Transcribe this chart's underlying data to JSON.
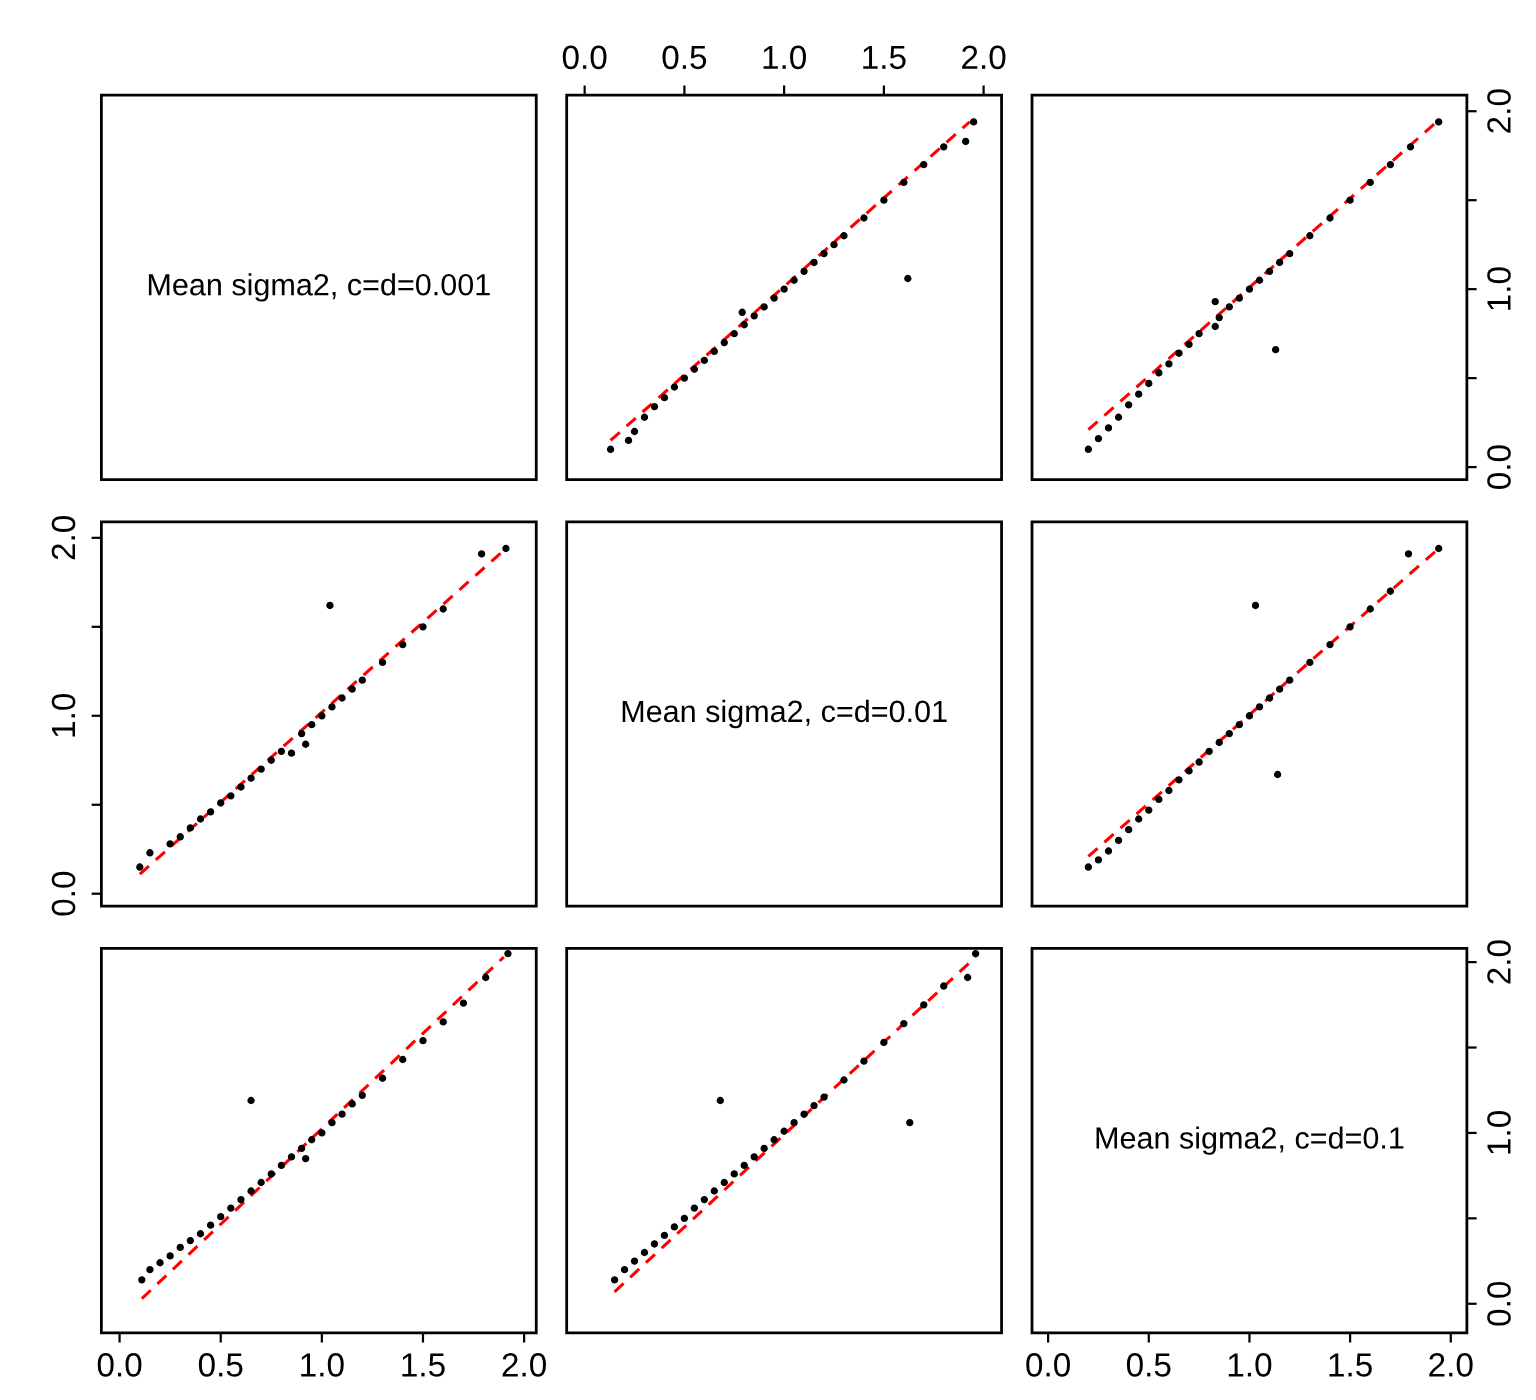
{
  "chart_data": [
    {
      "type": "other",
      "annotations": [
        "Mean sigma2, c=d=0.001"
      ]
    },
    {
      "type": "scatter",
      "tick_labels": "x",
      "xlim": [
        -0.09,
        2.09
      ],
      "ylim": [
        -0.07,
        2.09
      ],
      "xticks": [
        {
          "value": 0,
          "label": "0.0"
        },
        {
          "value": 0.5,
          "label": "0.5"
        },
        {
          "value": 1,
          "label": "1.0"
        },
        {
          "value": 1.5,
          "label": "1.5"
        },
        {
          "value": 2,
          "label": "2.0"
        }
      ],
      "series": [
        {
          "type": "scatter",
          "color": "#000000",
          "marker": "circle",
          "x": [
            0.13,
            0.22,
            0.25,
            0.3,
            0.35,
            0.4,
            0.45,
            0.5,
            0.55,
            0.6,
            0.65,
            0.7,
            0.75,
            0.79,
            0.8,
            0.85,
            0.9,
            0.95,
            1.0,
            1.05,
            1.1,
            1.15,
            1.2,
            1.25,
            1.3,
            1.4,
            1.5,
            1.62,
            1.6,
            1.7,
            1.8,
            1.91,
            1.95
          ],
          "values": [
            0.1,
            0.15,
            0.2,
            0.28,
            0.34,
            0.39,
            0.45,
            0.5,
            0.55,
            0.6,
            0.65,
            0.7,
            0.75,
            0.87,
            0.8,
            0.85,
            0.9,
            0.95,
            1.0,
            1.05,
            1.1,
            1.15,
            1.2,
            1.25,
            1.3,
            1.4,
            1.5,
            1.06,
            1.6,
            1.7,
            1.8,
            1.83,
            1.94
          ]
        },
        {
          "type": "line",
          "color": "#ff0000",
          "line_style": "dashed",
          "x": [
            0.13,
            1.93
          ],
          "values": [
            0.15,
            1.94
          ]
        }
      ]
    },
    {
      "type": "scatter",
      "tick_labels": "y",
      "xlim": [
        -0.08,
        2.08
      ],
      "ylim": [
        -0.07,
        2.09
      ],
      "yticks": [
        {
          "value": 0,
          "label": "0.0"
        },
        {
          "value": 0.5,
          "label": null
        },
        {
          "value": 1,
          "label": "1.0"
        },
        {
          "value": 1.5,
          "label": null
        },
        {
          "value": 2,
          "label": "2.0"
        }
      ],
      "series": [
        {
          "type": "scatter",
          "color": "#000000",
          "marker": "circle",
          "x": [
            0.2,
            0.25,
            0.3,
            0.35,
            0.4,
            0.45,
            0.5,
            0.55,
            0.6,
            0.65,
            0.7,
            0.75,
            0.83,
            0.83,
            0.85,
            0.9,
            0.95,
            1.0,
            1.05,
            1.1,
            1.13,
            1.15,
            1.2,
            1.3,
            1.4,
            1.5,
            1.6,
            1.7,
            1.8,
            1.94
          ],
          "values": [
            0.1,
            0.16,
            0.22,
            0.28,
            0.35,
            0.41,
            0.47,
            0.53,
            0.58,
            0.64,
            0.69,
            0.75,
            0.93,
            0.79,
            0.84,
            0.9,
            0.95,
            1.0,
            1.05,
            1.1,
            0.66,
            1.15,
            1.2,
            1.3,
            1.4,
            1.5,
            1.6,
            1.7,
            1.8,
            1.94
          ]
        },
        {
          "type": "line",
          "color": "#ff0000",
          "line_style": "dashed",
          "x": [
            0.2,
            1.93
          ],
          "values": [
            0.21,
            1.94
          ]
        }
      ]
    },
    {
      "type": "scatter",
      "tick_labels": "y",
      "xlim": [
        -0.09,
        2.06
      ],
      "ylim": [
        -0.07,
        2.09
      ],
      "yticks": [
        {
          "value": 0,
          "label": "0.0"
        },
        {
          "value": 0.5,
          "label": null
        },
        {
          "value": 1,
          "label": "1.0"
        },
        {
          "value": 1.5,
          "label": null
        },
        {
          "value": 2,
          "label": "2.0"
        }
      ],
      "series": [
        {
          "type": "scatter",
          "color": "#000000",
          "marker": "circle",
          "x": [
            0.1,
            0.15,
            0.25,
            0.3,
            0.35,
            0.4,
            0.45,
            0.5,
            0.55,
            0.6,
            0.65,
            0.7,
            0.75,
            0.8,
            0.85,
            0.92,
            0.9,
            0.95,
            1.0,
            1.04,
            1.05,
            1.1,
            1.15,
            1.2,
            1.3,
            1.4,
            1.5,
            1.6,
            1.79,
            1.91
          ],
          "values": [
            0.15,
            0.23,
            0.28,
            0.32,
            0.37,
            0.42,
            0.46,
            0.51,
            0.55,
            0.6,
            0.65,
            0.7,
            0.75,
            0.8,
            0.79,
            0.84,
            0.9,
            0.95,
            1.0,
            1.62,
            1.05,
            1.1,
            1.15,
            1.2,
            1.3,
            1.4,
            1.5,
            1.6,
            1.91,
            1.94
          ]
        },
        {
          "type": "line",
          "color": "#ff0000",
          "line_style": "dashed",
          "x": [
            0.1,
            1.91
          ],
          "values": [
            0.11,
            1.94
          ]
        }
      ]
    },
    {
      "type": "other",
      "annotations": [
        "Mean sigma2, c=d=0.01"
      ]
    },
    {
      "type": "scatter",
      "tick_labels": false,
      "xlim": [
        -0.08,
        2.08
      ],
      "ylim": [
        -0.07,
        2.09
      ],
      "series": [
        {
          "type": "scatter",
          "color": "#000000",
          "marker": "circle",
          "x": [
            0.2,
            0.25,
            0.3,
            0.35,
            0.4,
            0.45,
            0.5,
            0.55,
            0.6,
            0.65,
            0.7,
            0.75,
            0.8,
            0.85,
            0.9,
            0.95,
            1.0,
            1.03,
            1.05,
            1.1,
            1.14,
            1.15,
            1.2,
            1.3,
            1.4,
            1.5,
            1.6,
            1.7,
            1.79,
            1.94
          ],
          "values": [
            0.15,
            0.19,
            0.24,
            0.3,
            0.36,
            0.42,
            0.47,
            0.53,
            0.58,
            0.64,
            0.69,
            0.74,
            0.8,
            0.85,
            0.9,
            0.95,
            1.0,
            1.62,
            1.05,
            1.1,
            0.67,
            1.15,
            1.2,
            1.3,
            1.4,
            1.5,
            1.6,
            1.7,
            1.91,
            1.94
          ]
        },
        {
          "type": "line",
          "color": "#ff0000",
          "line_style": "dashed",
          "x": [
            0.2,
            1.94
          ],
          "values": [
            0.21,
            1.94
          ]
        }
      ]
    },
    {
      "type": "scatter",
      "tick_labels": "x",
      "xlim": [
        -0.09,
        2.06
      ],
      "ylim": [
        -0.17,
        2.08
      ],
      "xticks": [
        {
          "value": 0,
          "label": "0.0"
        },
        {
          "value": 0.5,
          "label": "0.5"
        },
        {
          "value": 1,
          "label": "1.0"
        },
        {
          "value": 1.5,
          "label": "1.5"
        },
        {
          "value": 2,
          "label": "2.0"
        }
      ],
      "series": [
        {
          "type": "scatter",
          "color": "#000000",
          "marker": "circle",
          "x": [
            0.11,
            0.15,
            0.2,
            0.25,
            0.3,
            0.35,
            0.4,
            0.45,
            0.5,
            0.55,
            0.6,
            0.65,
            0.65,
            0.7,
            0.75,
            0.8,
            0.85,
            0.92,
            0.9,
            0.95,
            1.0,
            1.05,
            1.1,
            1.15,
            1.2,
            1.3,
            1.4,
            1.5,
            1.6,
            1.7,
            1.81,
            1.92
          ],
          "values": [
            0.14,
            0.2,
            0.24,
            0.28,
            0.33,
            0.37,
            0.41,
            0.46,
            0.51,
            0.56,
            0.61,
            0.66,
            1.19,
            0.71,
            0.76,
            0.81,
            0.86,
            0.85,
            0.91,
            0.96,
            1.0,
            1.06,
            1.11,
            1.17,
            1.22,
            1.32,
            1.43,
            1.54,
            1.65,
            1.76,
            1.91,
            2.05
          ]
        },
        {
          "type": "line",
          "color": "#ff0000",
          "line_style": "dashed",
          "x": [
            0.11,
            1.9
          ],
          "values": [
            0.03,
            2.03
          ]
        }
      ]
    },
    {
      "type": "scatter",
      "tick_labels": false,
      "xlim": [
        -0.09,
        2.09
      ],
      "ylim": [
        -0.17,
        2.08
      ],
      "series": [
        {
          "type": "scatter",
          "color": "#000000",
          "marker": "circle",
          "x": [
            0.15,
            0.2,
            0.25,
            0.3,
            0.35,
            0.4,
            0.45,
            0.5,
            0.55,
            0.6,
            0.65,
            0.68,
            0.7,
            0.75,
            0.8,
            0.85,
            0.9,
            0.95,
            1.0,
            1.05,
            1.1,
            1.15,
            1.2,
            1.3,
            1.4,
            1.5,
            1.63,
            1.6,
            1.7,
            1.8,
            1.92,
            1.96
          ],
          "values": [
            0.14,
            0.2,
            0.25,
            0.3,
            0.35,
            0.4,
            0.45,
            0.5,
            0.56,
            0.61,
            0.66,
            1.19,
            0.71,
            0.76,
            0.81,
            0.86,
            0.91,
            0.96,
            1.01,
            1.06,
            1.11,
            1.16,
            1.21,
            1.31,
            1.42,
            1.53,
            1.06,
            1.64,
            1.75,
            1.86,
            1.91,
            2.05
          ]
        },
        {
          "type": "line",
          "color": "#ff0000",
          "line_style": "dashed",
          "x": [
            0.15,
            1.96
          ],
          "values": [
            0.07,
            2.03
          ]
        }
      ]
    },
    {
      "type": "scatter",
      "annotations": [
        "Mean sigma2, c=d=0.1"
      ],
      "xlim": [
        -0.08,
        2.08
      ],
      "ylim": [
        -0.17,
        2.08
      ],
      "xticks": [
        {
          "value": 0,
          "label": "0.0"
        },
        {
          "value": 0.5,
          "label": "0.5"
        },
        {
          "value": 1,
          "label": "1.0"
        },
        {
          "value": 1.5,
          "label": "1.5"
        },
        {
          "value": 2,
          "label": "2.0"
        }
      ],
      "yticks": [
        {
          "value": 0,
          "label": "0.0"
        },
        {
          "value": 0.5,
          "label": null
        },
        {
          "value": 1,
          "label": "1.0"
        },
        {
          "value": 1.5,
          "label": null
        },
        {
          "value": 2,
          "label": "2.0"
        }
      ]
    }
  ]
}
